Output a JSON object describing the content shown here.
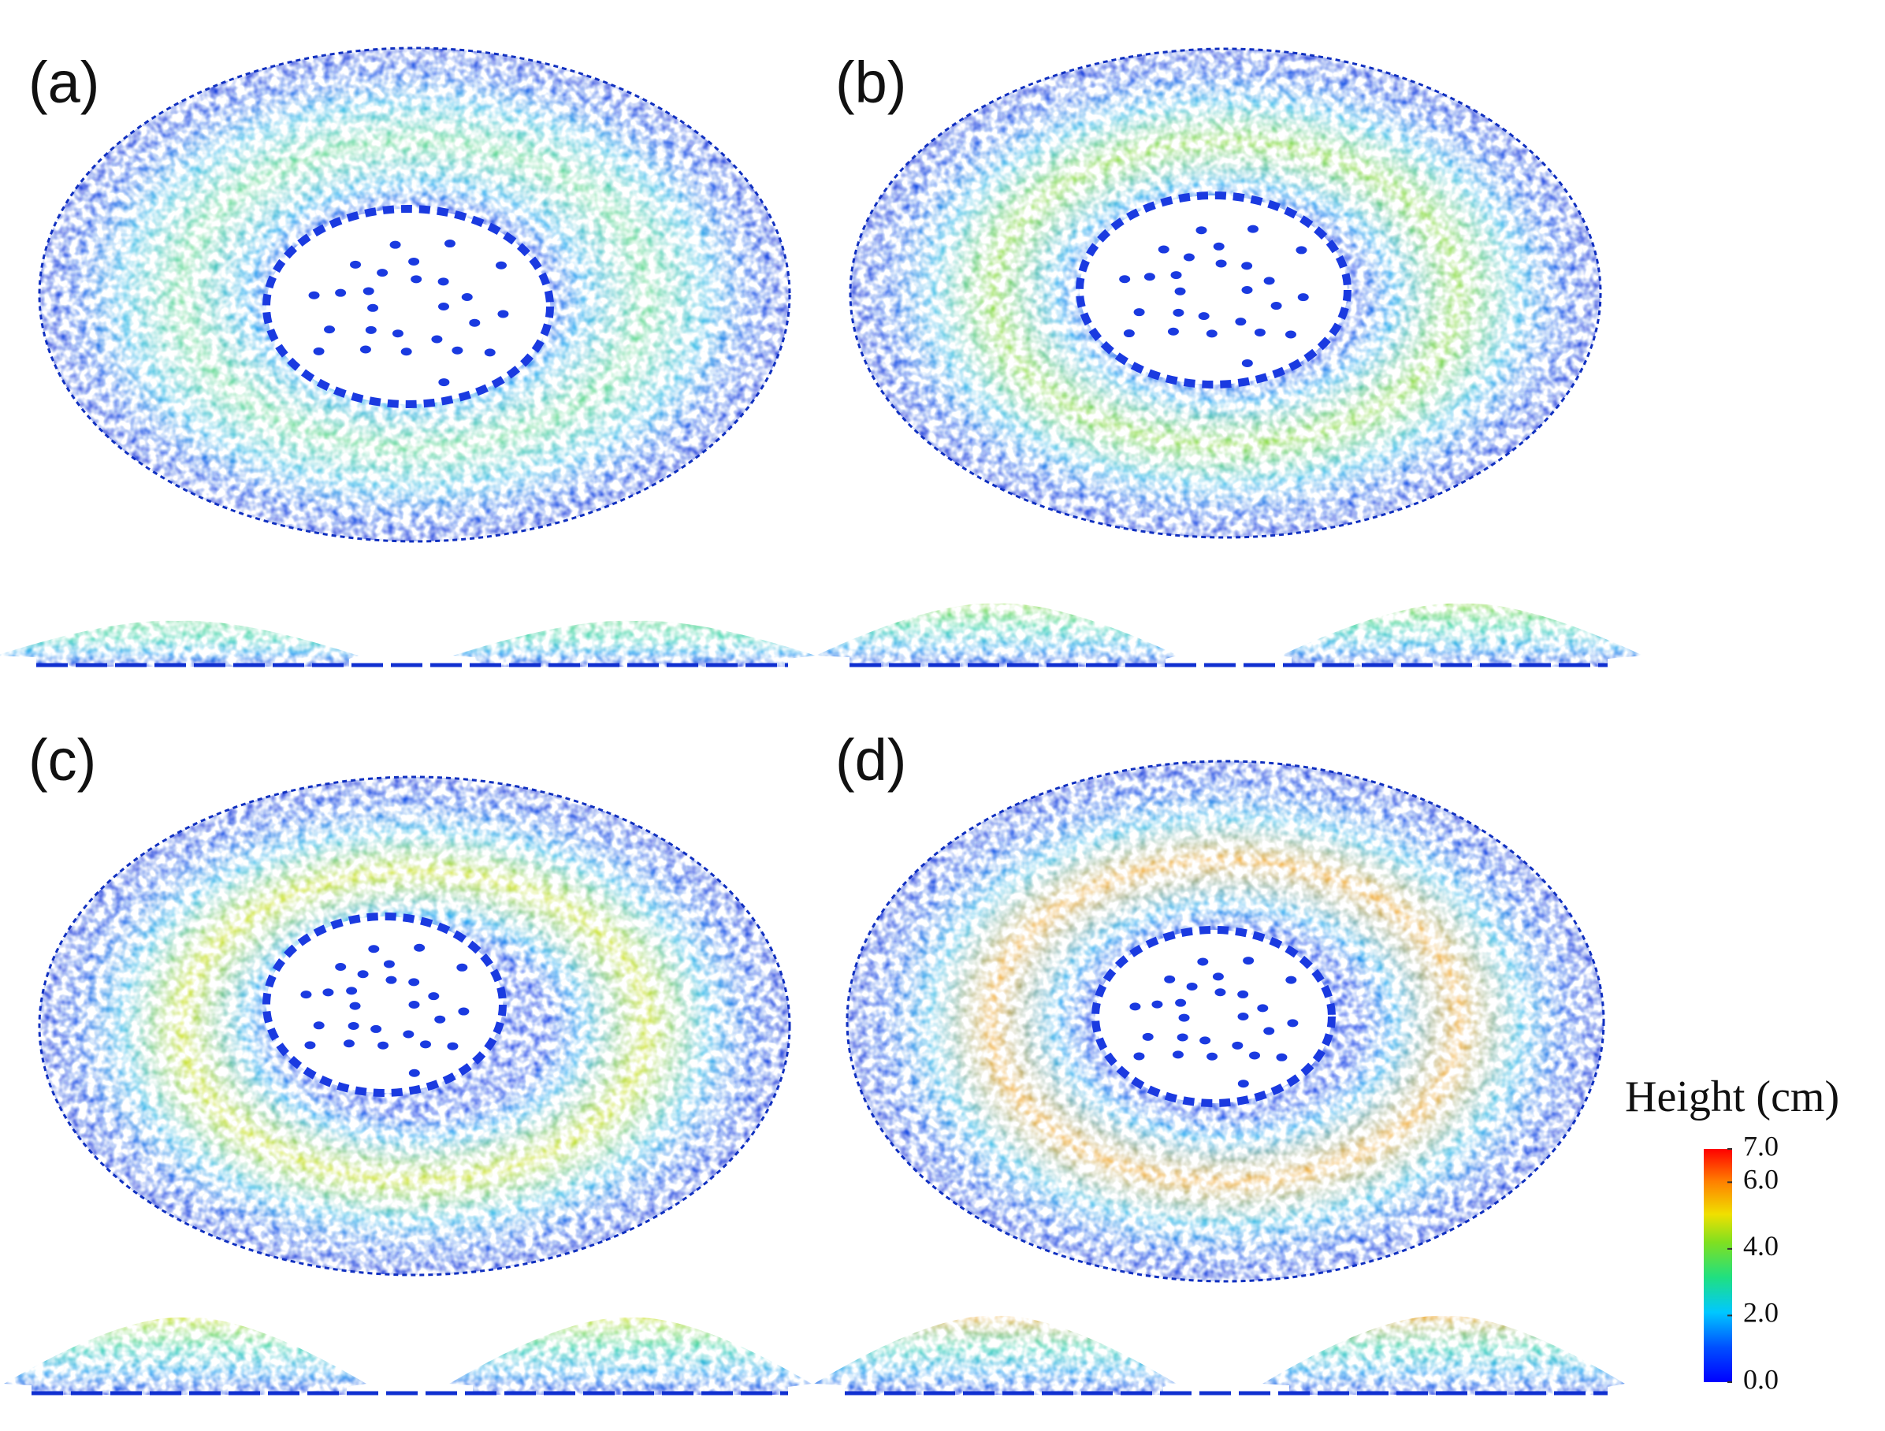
{
  "panels": [
    {
      "label": "(a)"
    },
    {
      "label": "(b)"
    },
    {
      "label": "(c)"
    },
    {
      "label": "(d)"
    }
  ],
  "colorbar": {
    "title": "Height (cm)",
    "lim": [
      0,
      7
    ],
    "ticks": [
      {
        "value": 7,
        "label": "7.0"
      },
      {
        "value": 6,
        "label": "6.0"
      },
      {
        "value": 4,
        "label": "4.0"
      },
      {
        "value": 2,
        "label": "2.0"
      },
      {
        "value": 0,
        "label": "0.0"
      }
    ]
  }
}
